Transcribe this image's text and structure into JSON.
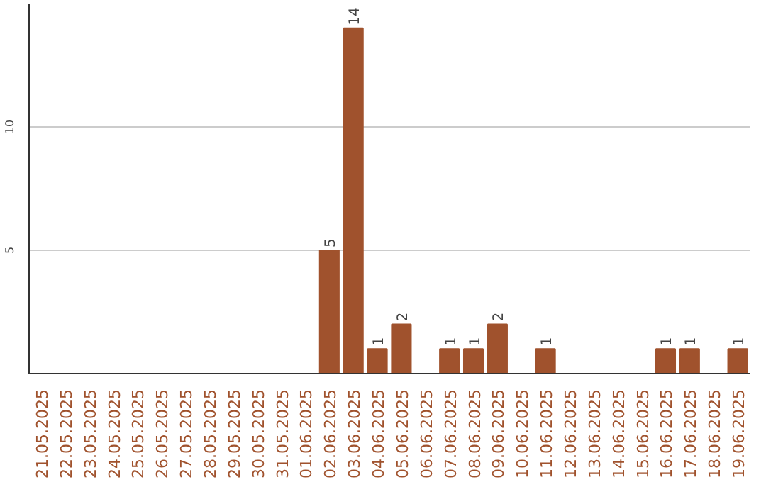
{
  "chart_data": {
    "type": "bar",
    "categories": [
      "21.05.2025",
      "22.05.2025",
      "23.05.2025",
      "24.05.2025",
      "25.05.2025",
      "26.05.2025",
      "27.05.2025",
      "28.05.2025",
      "29.05.2025",
      "30.05.2025",
      "31.05.2025",
      "01.06.2025",
      "02.06.2025",
      "03.06.2025",
      "04.06.2025",
      "05.06.2025",
      "06.06.2025",
      "07.06.2025",
      "08.06.2025",
      "09.06.2025",
      "10.06.2025",
      "11.06.2025",
      "12.06.2025",
      "13.06.2025",
      "14.06.2025",
      "15.06.2025",
      "16.06.2025",
      "17.06.2025",
      "18.06.2025",
      "19.06.2025"
    ],
    "values": [
      0,
      0,
      0,
      0,
      0,
      0,
      0,
      0,
      0,
      0,
      0,
      0,
      5,
      14,
      1,
      2,
      0,
      1,
      1,
      2,
      0,
      1,
      0,
      0,
      0,
      0,
      1,
      1,
      0,
      1
    ],
    "value_labels": [
      null,
      null,
      null,
      null,
      null,
      null,
      null,
      null,
      null,
      null,
      null,
      null,
      "5",
      "14",
      "1",
      "2",
      null,
      "1",
      "1",
      "2",
      null,
      "1",
      null,
      null,
      null,
      null,
      "1",
      "1",
      null,
      "1"
    ],
    "color": "#a0522d",
    "ylim": [
      0,
      15
    ],
    "yticks": [
      5,
      10
    ],
    "grid": "y"
  }
}
